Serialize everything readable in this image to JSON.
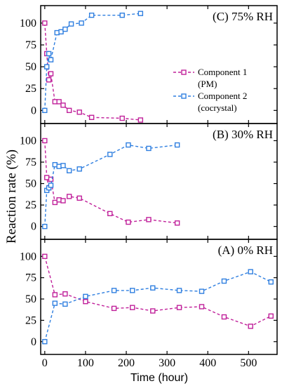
{
  "chart_data": {
    "type": "line",
    "ylabel": "Reaction rate (%)",
    "xlabel": "Time (hour)",
    "xlim": [
      -10,
      570
    ],
    "xticks": [
      0,
      100,
      200,
      300,
      400,
      500
    ],
    "colors": {
      "component1": "#c0209a",
      "component2": "#2f7fe0"
    },
    "legend": {
      "placement": "right, panel C",
      "entries": [
        {
          "label": "Component 1",
          "sublabel": "(PM)"
        },
        {
          "label": "Component 2",
          "sublabel": "(cocrystal)"
        }
      ]
    },
    "panels": [
      {
        "title": "(C) 75% RH",
        "ylim": [
          -15,
          120
        ],
        "yticks": [
          0,
          25,
          50,
          75,
          100
        ],
        "series": [
          {
            "name": "Component 1 (PM)",
            "x": [
              0,
              5,
              10,
              15,
              25,
              35,
              45,
              60,
              85,
              115,
              190,
              235
            ],
            "y": [
              100,
              65,
              35,
              42,
              10,
              10,
              6,
              0,
              -2,
              -8,
              -9,
              -11
            ]
          },
          {
            "name": "Component 2 (cocrystal)",
            "x": [
              0,
              5,
              10,
              15,
              30,
              40,
              50,
              65,
              90,
              115,
              190,
              235
            ],
            "y": [
              0,
              50,
              65,
              58,
              89,
              90,
              93,
              99,
              100,
              109,
              109,
              111
            ]
          }
        ]
      },
      {
        "title": "(B) 30% RH",
        "ylim": [
          -15,
          120
        ],
        "yticks": [
          0,
          25,
          50,
          75,
          100
        ],
        "series": [
          {
            "name": "Component 1 (PM)",
            "x": [
              0,
              5,
              10,
              15,
              25,
              35,
              45,
              60,
              85,
              160,
              205,
              255,
              325
            ],
            "y": [
              100,
              57,
              45,
              55,
              28,
              31,
              30,
              35,
              33,
              15,
              5,
              8,
              4
            ]
          },
          {
            "name": "Component 2 (cocrystal)",
            "x": [
              0,
              5,
              10,
              15,
              25,
              35,
              45,
              60,
              85,
              160,
              205,
              255,
              325
            ],
            "y": [
              0,
              42,
              45,
              48,
              72,
              70,
              71,
              65,
              67,
              84,
              95,
              91,
              95
            ]
          }
        ]
      },
      {
        "title": "(A) 0% RH",
        "ylim": [
          -15,
          120
        ],
        "yticks": [
          0,
          25,
          50,
          75,
          100
        ],
        "series": [
          {
            "name": "Component 1 (PM)",
            "x": [
              0,
              25,
              50,
              100,
              170,
              215,
              265,
              330,
              385,
              440,
              505,
              555
            ],
            "y": [
              100,
              55,
              56,
              47,
              39,
              40,
              36,
              40,
              41,
              29,
              18,
              30
            ]
          },
          {
            "name": "Component 2 (cocrystal)",
            "x": [
              0,
              25,
              50,
              100,
              170,
              215,
              265,
              330,
              385,
              440,
              505,
              555
            ],
            "y": [
              0,
              45,
              44,
              53,
              60,
              60,
              63,
              60,
              59,
              71,
              82,
              70
            ]
          }
        ]
      }
    ]
  }
}
